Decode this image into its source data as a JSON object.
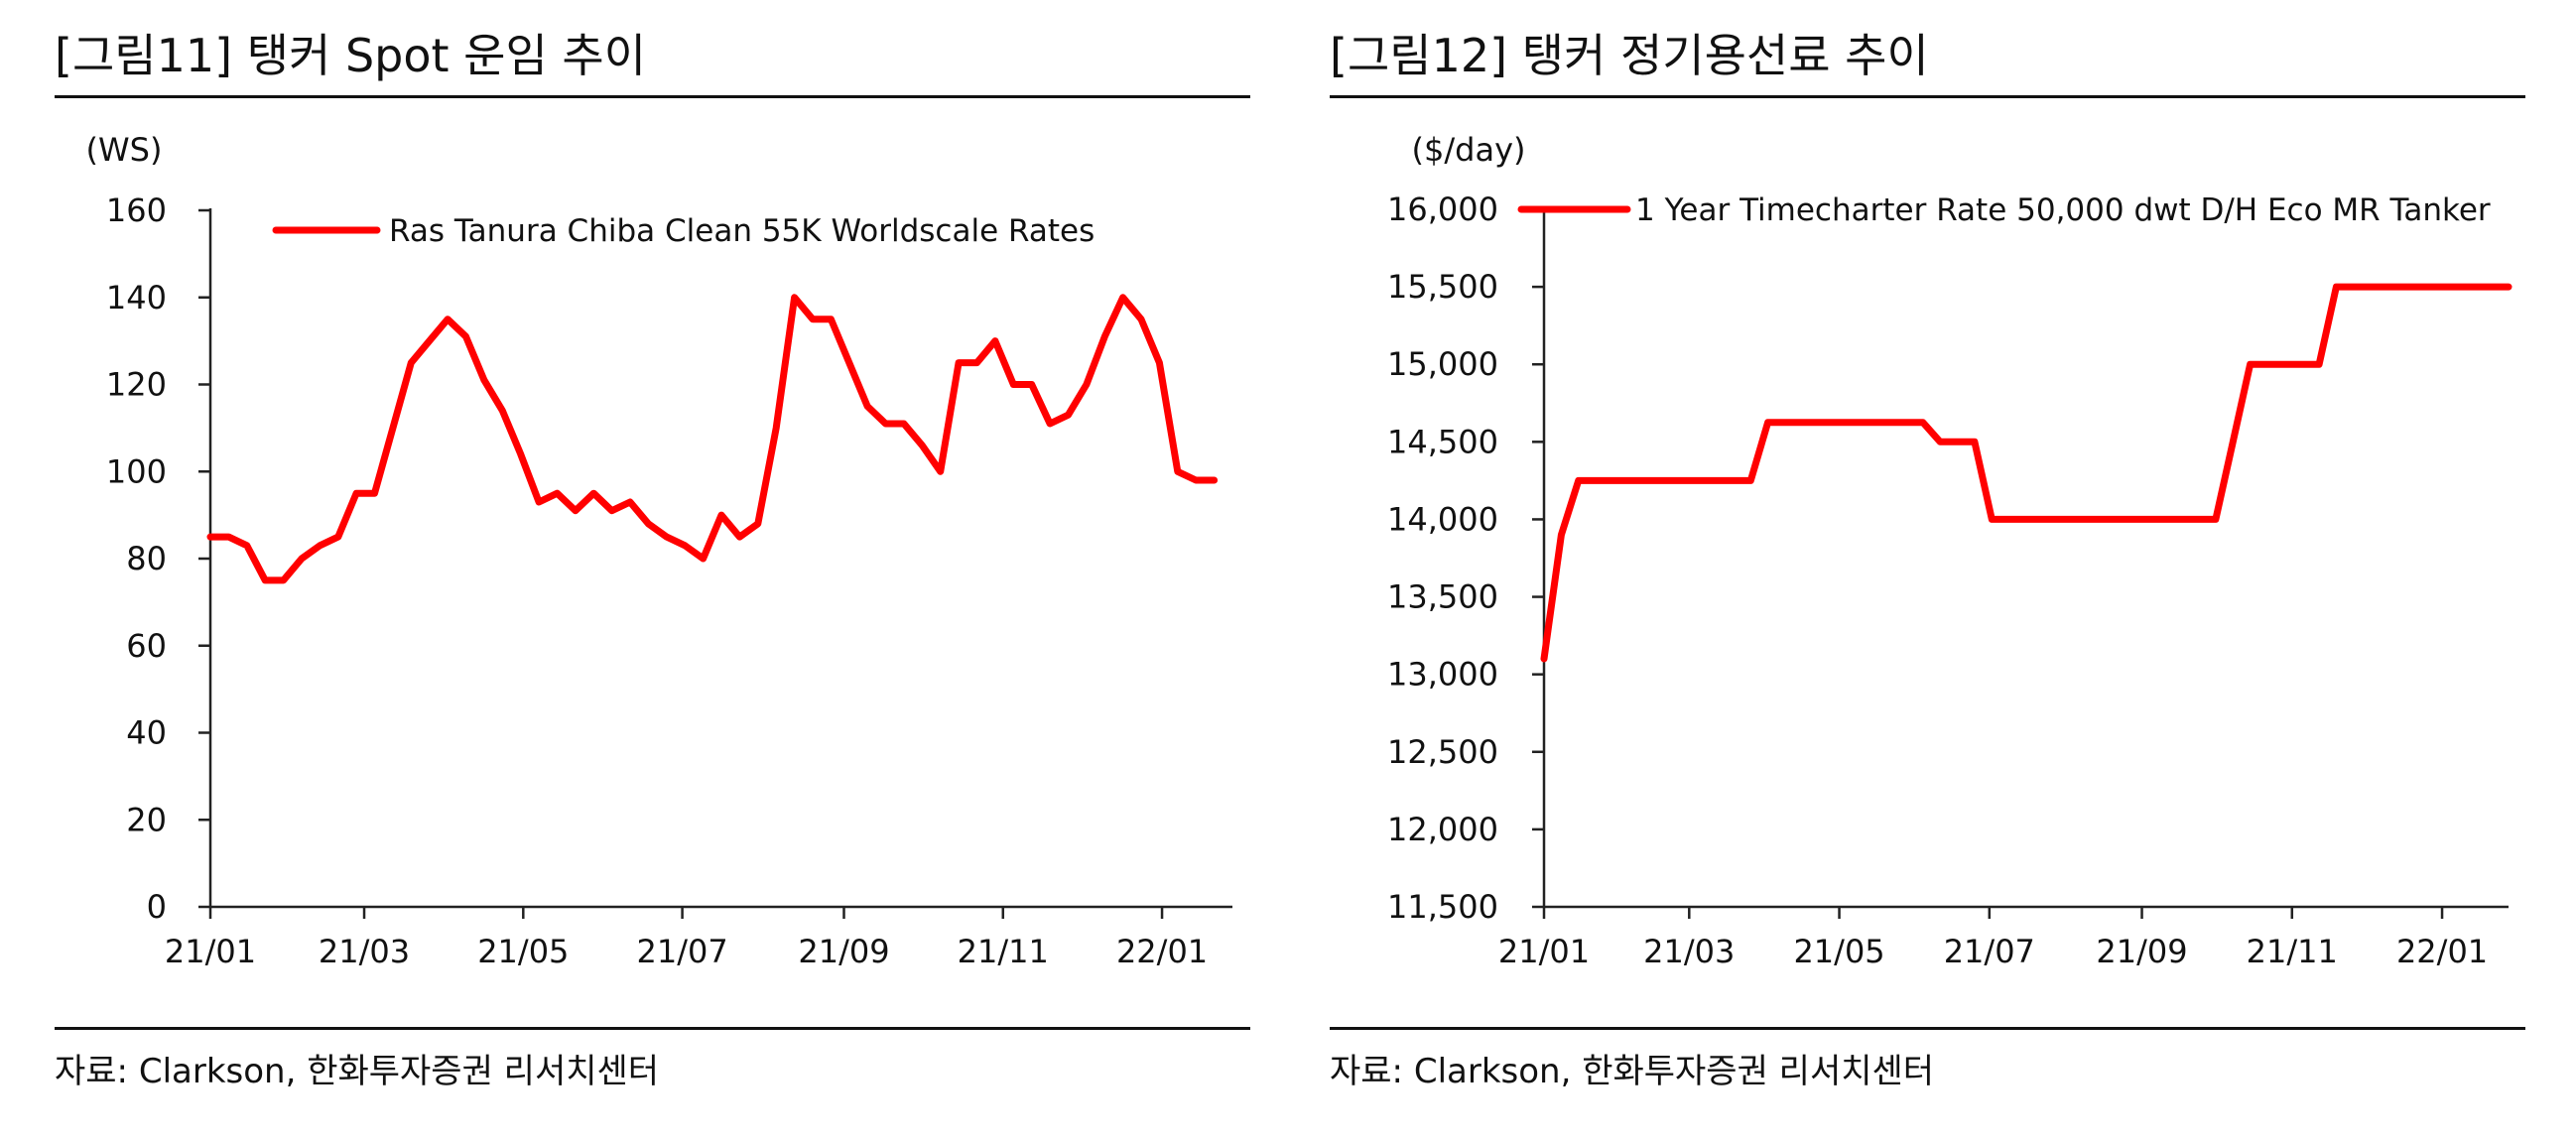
{
  "charts": [
    {
      "fig_title": "[그림11]  탱커 Spot 운임 추이",
      "source": "자료: Clarkson, 한화투자증권 리서치센터",
      "chart_data": {
        "type": "line",
        "title": "",
        "ylabel": "(WS)",
        "xlabel": "",
        "ylim": [
          0,
          160
        ],
        "yticks": [
          0,
          20,
          40,
          60,
          80,
          100,
          120,
          140,
          160
        ],
        "ytick_labels": [
          "0",
          "20",
          "40",
          "60",
          "80",
          "100",
          "120",
          "140",
          "160"
        ],
        "xticks": [
          "21/01",
          "21/03",
          "21/05",
          "21/07",
          "21/09",
          "21/11",
          "22/01"
        ],
        "legend_position": "top",
        "color": "#ff0000",
        "series": [
          {
            "name": "Ras Tanura Chiba Clean 55K Worldscale Rates",
            "x": [
              "2021-01-01",
              "2021-01-08",
              "2021-01-15",
              "2021-01-22",
              "2021-01-29",
              "2021-02-05",
              "2021-02-12",
              "2021-02-19",
              "2021-02-26",
              "2021-03-05",
              "2021-03-12",
              "2021-03-19",
              "2021-03-26",
              "2021-04-02",
              "2021-04-09",
              "2021-04-16",
              "2021-04-23",
              "2021-04-30",
              "2021-05-07",
              "2021-05-14",
              "2021-05-21",
              "2021-05-28",
              "2021-06-04",
              "2021-06-11",
              "2021-06-18",
              "2021-06-25",
              "2021-07-02",
              "2021-07-09",
              "2021-07-16",
              "2021-07-23",
              "2021-07-30",
              "2021-08-06",
              "2021-08-13",
              "2021-08-20",
              "2021-08-27",
              "2021-09-03",
              "2021-09-10",
              "2021-09-17",
              "2021-09-24",
              "2021-10-01",
              "2021-10-08",
              "2021-10-15",
              "2021-10-22",
              "2021-10-29",
              "2021-11-05",
              "2021-11-12",
              "2021-11-19",
              "2021-11-26",
              "2021-12-03",
              "2021-12-10",
              "2021-12-17",
              "2021-12-24",
              "2021-12-31",
              "2022-01-07",
              "2022-01-14",
              "2022-01-21"
            ],
            "y": [
              85,
              85,
              83,
              75,
              75,
              80,
              83,
              85,
              95,
              95,
              110,
              125,
              130,
              135,
              131,
              121,
              114,
              104,
              93,
              95,
              91,
              95,
              91,
              93,
              88,
              85,
              83,
              80,
              90,
              85,
              88,
              110,
              140,
              135,
              135,
              125,
              115,
              111,
              111,
              106,
              100,
              125,
              125,
              130,
              120,
              120,
              111,
              113,
              120,
              131,
              140,
              135,
              125,
              100,
              98,
              98
            ]
          }
        ]
      }
    },
    {
      "fig_title": "[그림12]  탱커 정기용선료 추이",
      "source": "자료: Clarkson, 한화투자증권 리서치센터",
      "chart_data": {
        "type": "line",
        "title": "",
        "ylabel": "($/day)",
        "xlabel": "",
        "ylim": [
          11500,
          16000
        ],
        "yticks": [
          11500,
          12000,
          12500,
          13000,
          13500,
          14000,
          14500,
          15000,
          15500,
          16000
        ],
        "ytick_labels": [
          "11,500",
          "12,000",
          "12,500",
          "13,000",
          "13,500",
          "14,000",
          "14,500",
          "15,000",
          "15,500",
          "16,000"
        ],
        "xticks": [
          "21/01",
          "21/03",
          "21/05",
          "21/07",
          "21/09",
          "21/11",
          "22/01"
        ],
        "legend_position": "top",
        "color": "#ff0000",
        "series": [
          {
            "name": "1 Year Timecharter Rate 50,000 dwt D/H Eco MR Tanker",
            "x": [
              "2021-01-01",
              "2021-01-08",
              "2021-01-15",
              "2021-01-22",
              "2021-03-26",
              "2021-04-02",
              "2021-06-04",
              "2021-06-11",
              "2021-06-25",
              "2021-07-02",
              "2021-10-01",
              "2021-10-08",
              "2021-10-15",
              "2021-11-05",
              "2021-11-12",
              "2021-11-19",
              "2022-01-28"
            ],
            "y": [
              13100,
              13900,
              14250,
              14250,
              14250,
              14625,
              14625,
              14500,
              14500,
              14000,
              14000,
              14500,
              15000,
              15000,
              15000,
              15500,
              15500
            ]
          }
        ]
      }
    }
  ]
}
